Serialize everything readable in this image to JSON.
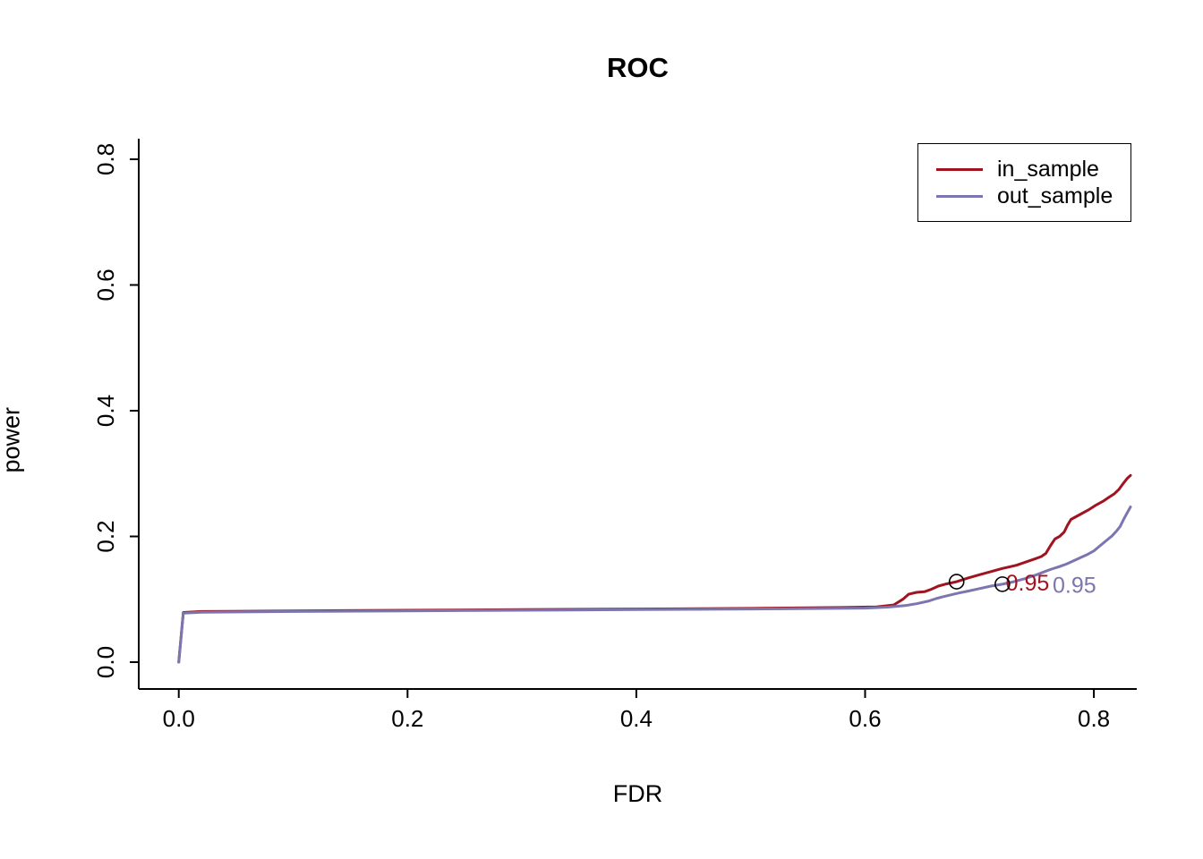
{
  "chart_data": {
    "type": "line",
    "title": "ROC",
    "xlabel": "FDR",
    "ylabel": "power",
    "xlim": [
      -0.035,
      0.8375
    ],
    "ylim": [
      -0.0427,
      0.8327
    ],
    "xticks": [
      0.0,
      0.2,
      0.4,
      0.6,
      0.8
    ],
    "yticks": [
      0.0,
      0.2,
      0.4,
      0.6,
      0.8
    ],
    "xtick_labels": [
      "0.0",
      "0.2",
      "0.4",
      "0.6",
      "0.8"
    ],
    "ytick_labels": [
      "0.0",
      "0.2",
      "0.4",
      "0.6",
      "0.8"
    ],
    "grid": false,
    "legend_position": "top-right",
    "series": [
      {
        "name": "in_sample",
        "color": "#A0131F",
        "points": [
          [
            0,
            0
          ],
          [
            0.004,
            0.079
          ],
          [
            0.02,
            0.0805
          ],
          [
            0.1,
            0.0815
          ],
          [
            0.2,
            0.0825
          ],
          [
            0.3,
            0.0835
          ],
          [
            0.4,
            0.0845
          ],
          [
            0.5,
            0.0855
          ],
          [
            0.58,
            0.087
          ],
          [
            0.61,
            0.088
          ],
          [
            0.625,
            0.091
          ],
          [
            0.633,
            0.1
          ],
          [
            0.638,
            0.108
          ],
          [
            0.645,
            0.111
          ],
          [
            0.652,
            0.112
          ],
          [
            0.658,
            0.116
          ],
          [
            0.664,
            0.121
          ],
          [
            0.67,
            0.124
          ],
          [
            0.68,
            0.128
          ],
          [
            0.69,
            0.134
          ],
          [
            0.7,
            0.139
          ],
          [
            0.71,
            0.144
          ],
          [
            0.72,
            0.149
          ],
          [
            0.732,
            0.154
          ],
          [
            0.74,
            0.159
          ],
          [
            0.748,
            0.164
          ],
          [
            0.754,
            0.168
          ],
          [
            0.758,
            0.173
          ],
          [
            0.762,
            0.185
          ],
          [
            0.766,
            0.196
          ],
          [
            0.77,
            0.2
          ],
          [
            0.774,
            0.207
          ],
          [
            0.777,
            0.218
          ],
          [
            0.78,
            0.227
          ],
          [
            0.785,
            0.232
          ],
          [
            0.79,
            0.237
          ],
          [
            0.796,
            0.243
          ],
          [
            0.802,
            0.25
          ],
          [
            0.808,
            0.256
          ],
          [
            0.813,
            0.262
          ],
          [
            0.818,
            0.268
          ],
          [
            0.822,
            0.275
          ],
          [
            0.826,
            0.285
          ],
          [
            0.829,
            0.292
          ],
          [
            0.832,
            0.297
          ]
        ]
      },
      {
        "name": "out_sample",
        "color": "#7B76AF",
        "points": [
          [
            0,
            0
          ],
          [
            0.004,
            0.078
          ],
          [
            0.02,
            0.0795
          ],
          [
            0.1,
            0.0805
          ],
          [
            0.2,
            0.0815
          ],
          [
            0.3,
            0.0825
          ],
          [
            0.4,
            0.0835
          ],
          [
            0.5,
            0.0845
          ],
          [
            0.6,
            0.086
          ],
          [
            0.62,
            0.0875
          ],
          [
            0.635,
            0.09
          ],
          [
            0.645,
            0.093
          ],
          [
            0.655,
            0.097
          ],
          [
            0.662,
            0.101
          ],
          [
            0.668,
            0.104
          ],
          [
            0.675,
            0.107
          ],
          [
            0.682,
            0.11
          ],
          [
            0.69,
            0.113
          ],
          [
            0.7,
            0.117
          ],
          [
            0.71,
            0.121
          ],
          [
            0.72,
            0.124
          ],
          [
            0.73,
            0.128
          ],
          [
            0.74,
            0.133
          ],
          [
            0.75,
            0.139
          ],
          [
            0.757,
            0.144
          ],
          [
            0.763,
            0.148
          ],
          [
            0.77,
            0.152
          ],
          [
            0.776,
            0.156
          ],
          [
            0.782,
            0.161
          ],
          [
            0.788,
            0.166
          ],
          [
            0.794,
            0.171
          ],
          [
            0.8,
            0.177
          ],
          [
            0.804,
            0.183
          ],
          [
            0.808,
            0.189
          ],
          [
            0.812,
            0.195
          ],
          [
            0.816,
            0.201
          ],
          [
            0.82,
            0.209
          ],
          [
            0.823,
            0.216
          ],
          [
            0.826,
            0.227
          ],
          [
            0.829,
            0.237
          ],
          [
            0.832,
            0.247
          ]
        ]
      }
    ],
    "markers": [
      {
        "series": "in_sample",
        "x": 0.68,
        "y": 0.128,
        "label": "0.95",
        "label_x": 0.742,
        "label_y": 0.125,
        "label_color": "#A0131F"
      },
      {
        "series": "out_sample",
        "x": 0.72,
        "y": 0.124,
        "label": "0.95",
        "label_x": 0.783,
        "label_y": 0.122,
        "label_color": "#7B76AF"
      }
    ]
  }
}
